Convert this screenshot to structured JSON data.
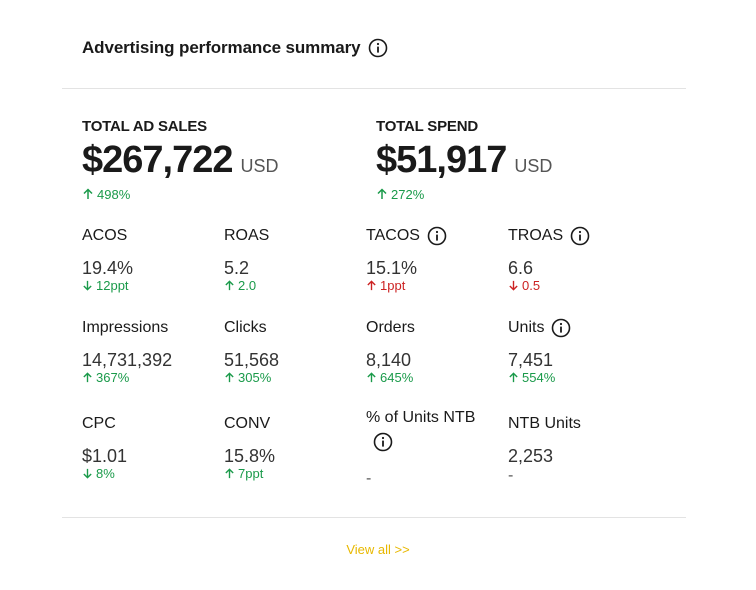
{
  "header": {
    "title": "Advertising performance summary",
    "icon": "info-icon"
  },
  "totals": {
    "ad_sales": {
      "label": "TOTAL AD SALES",
      "value": "$267,722",
      "unit": "USD",
      "delta": "498%",
      "direction": "up"
    },
    "spend": {
      "label": "TOTAL SPEND",
      "value": "$51,917",
      "unit": "USD",
      "delta": "272%",
      "direction": "up"
    }
  },
  "metrics": {
    "acos": {
      "label": "ACOS",
      "value": "19.4%",
      "delta": "12ppt",
      "direction": "down"
    },
    "roas": {
      "label": "ROAS",
      "value": "5.2",
      "delta": "2.0",
      "direction": "up"
    },
    "tacos": {
      "label": "TACOS",
      "value": "15.1%",
      "delta": "1ppt",
      "direction": "up"
    },
    "troas": {
      "label": "TROAS",
      "value": "6.6",
      "delta": "0.5",
      "direction": "down"
    },
    "impressions": {
      "label": "Impressions",
      "value": "14,731,392",
      "delta": "367%",
      "direction": "up"
    },
    "clicks": {
      "label": "Clicks",
      "value": "51,568",
      "delta": "305%",
      "direction": "up"
    },
    "orders": {
      "label": "Orders",
      "value": "8,140",
      "delta": "645%",
      "direction": "up"
    },
    "units": {
      "label": "Units",
      "value": "7,451",
      "delta": "554%",
      "direction": "up"
    },
    "cpc": {
      "label": "CPC",
      "value": "$1.01",
      "delta": "8%",
      "direction": "down"
    },
    "conv": {
      "label": "CONV",
      "value": "15.8%",
      "delta": "7ppt",
      "direction": "up"
    },
    "pct_units_ntb": {
      "label": "% of Units NTB",
      "value": "-"
    },
    "ntb_units": {
      "label": "NTB Units",
      "value": "2,253",
      "delta": "-"
    }
  },
  "footer": {
    "view_all": "View all >>"
  },
  "colors": {
    "positive": "#1a9a4a",
    "negative": "#cc2222",
    "link": "#e8b800"
  }
}
